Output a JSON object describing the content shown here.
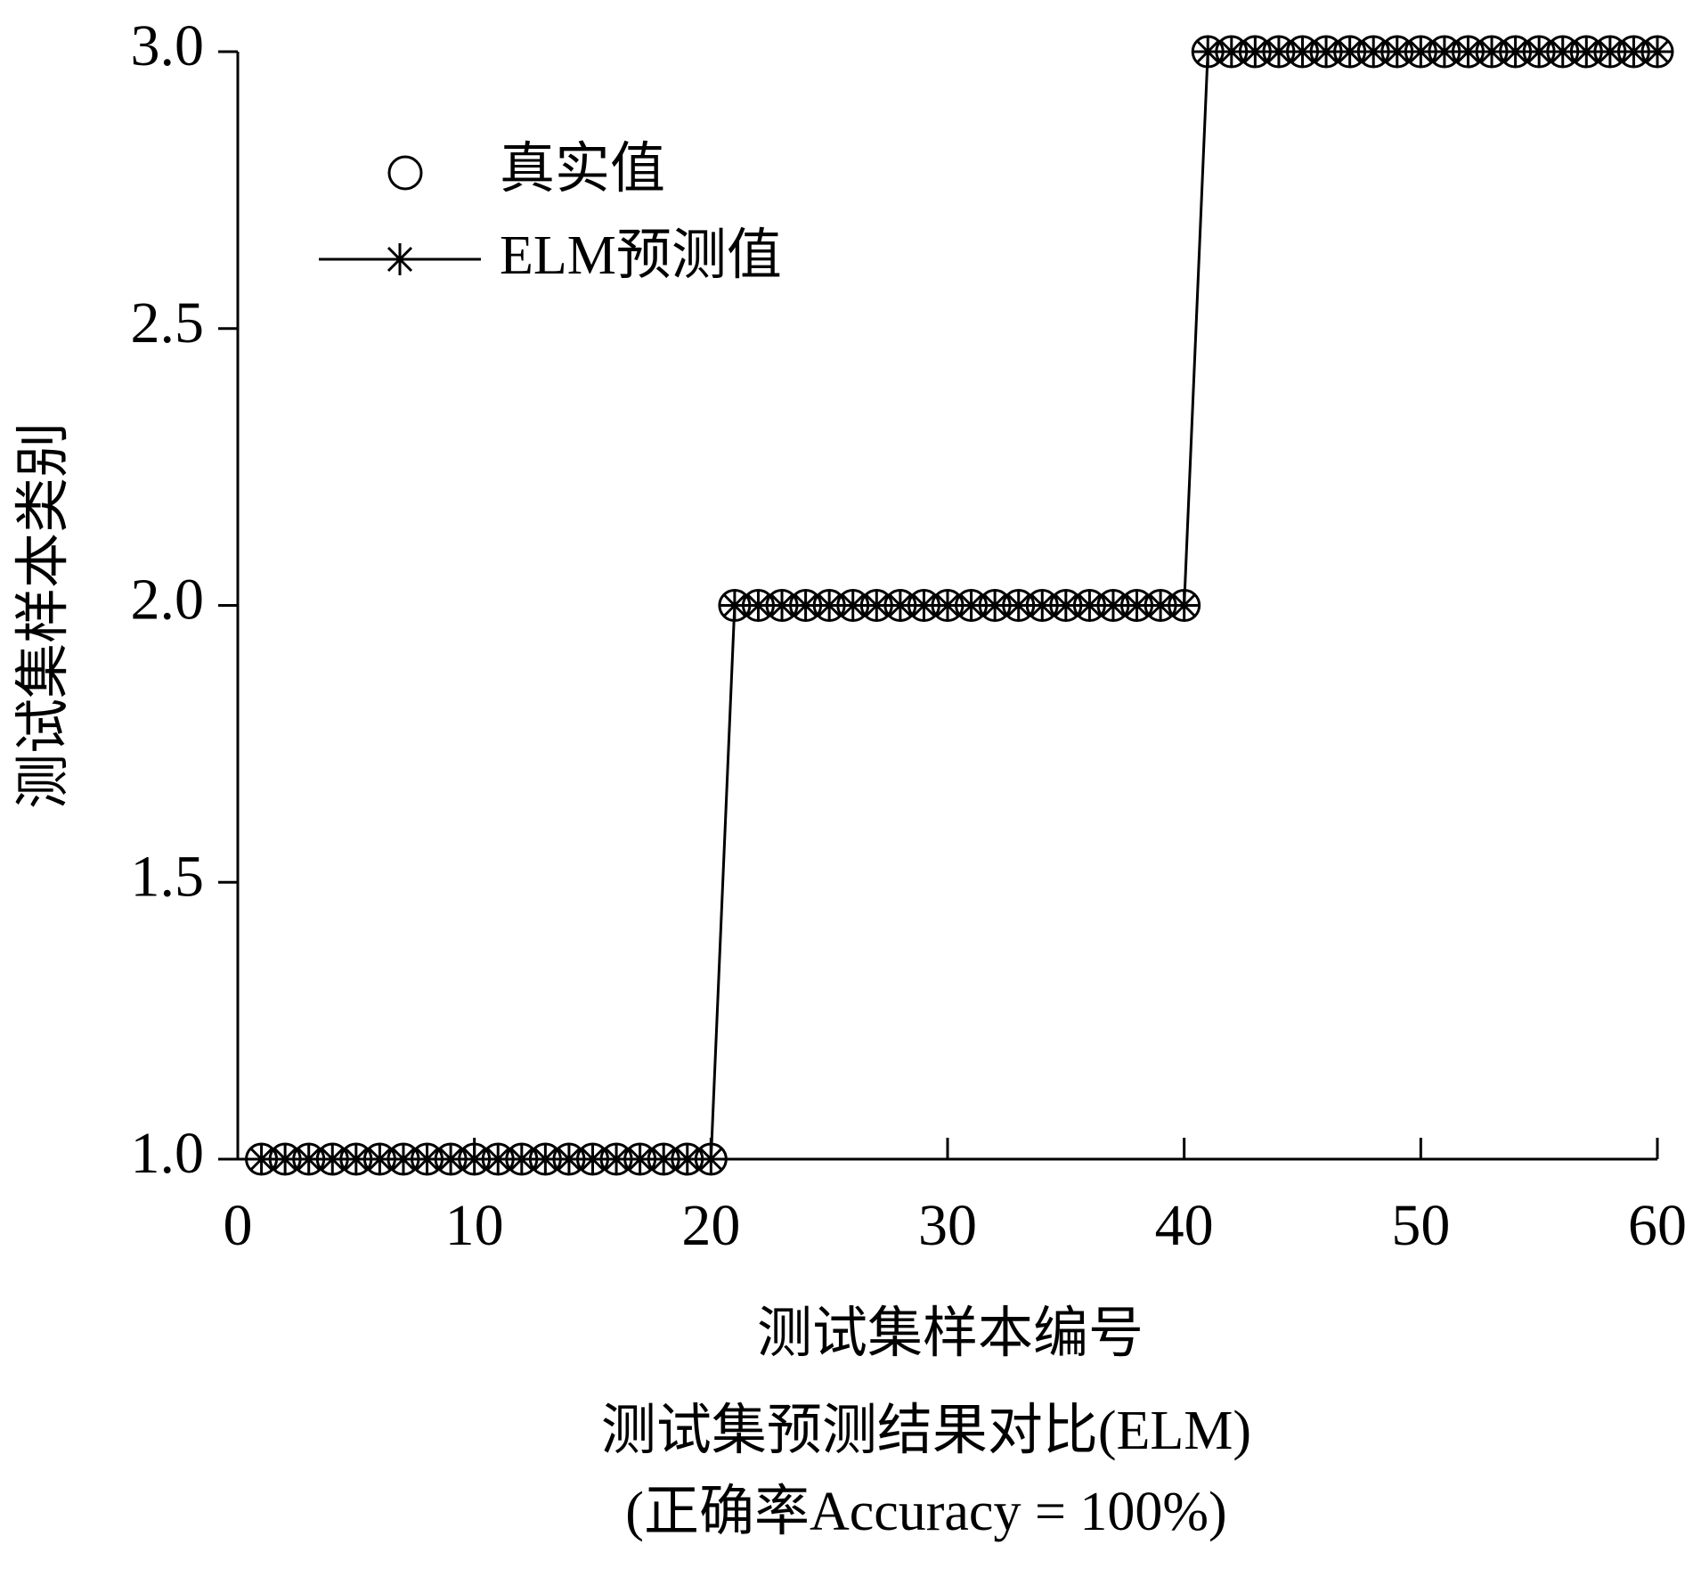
{
  "chart_data": {
    "type": "line",
    "title": "测试集预测结果对比(ELM)",
    "subtitle": "(正确率Accuracy = 100%)",
    "xlabel": "测试集样本编号",
    "ylabel": "测试集样本类别",
    "x": [
      1,
      2,
      3,
      4,
      5,
      6,
      7,
      8,
      9,
      10,
      11,
      12,
      13,
      14,
      15,
      16,
      17,
      18,
      19,
      20,
      21,
      22,
      23,
      24,
      25,
      26,
      27,
      28,
      29,
      30,
      31,
      32,
      33,
      34,
      35,
      36,
      37,
      38,
      39,
      40,
      41,
      42,
      43,
      44,
      45,
      46,
      47,
      48,
      49,
      50,
      51,
      52,
      53,
      54,
      55,
      56,
      57,
      58,
      59,
      60
    ],
    "series": [
      {
        "name": "真实值",
        "color": "#000000",
        "marker": "circle",
        "line": false,
        "values": [
          1,
          1,
          1,
          1,
          1,
          1,
          1,
          1,
          1,
          1,
          1,
          1,
          1,
          1,
          1,
          1,
          1,
          1,
          1,
          1,
          2,
          2,
          2,
          2,
          2,
          2,
          2,
          2,
          2,
          2,
          2,
          2,
          2,
          2,
          2,
          2,
          2,
          2,
          2,
          2,
          3,
          3,
          3,
          3,
          3,
          3,
          3,
          3,
          3,
          3,
          3,
          3,
          3,
          3,
          3,
          3,
          3,
          3,
          3,
          3
        ]
      },
      {
        "name": "ELM预测值",
        "color": "#000000",
        "marker": "asterisk",
        "line": true,
        "values": [
          1,
          1,
          1,
          1,
          1,
          1,
          1,
          1,
          1,
          1,
          1,
          1,
          1,
          1,
          1,
          1,
          1,
          1,
          1,
          1,
          2,
          2,
          2,
          2,
          2,
          2,
          2,
          2,
          2,
          2,
          2,
          2,
          2,
          2,
          2,
          2,
          2,
          2,
          2,
          2,
          3,
          3,
          3,
          3,
          3,
          3,
          3,
          3,
          3,
          3,
          3,
          3,
          3,
          3,
          3,
          3,
          3,
          3,
          3,
          3
        ]
      }
    ],
    "xlim": [
      0,
      60
    ],
    "xticks": [
      0,
      10,
      20,
      30,
      40,
      50,
      60
    ],
    "ylim": [
      1,
      3
    ],
    "yticks": [
      {
        "value": 1,
        "label": "1.0"
      },
      {
        "value": 1.5,
        "label": "1.5"
      },
      {
        "value": 2,
        "label": "2.0"
      },
      {
        "value": 2.5,
        "label": "2.5"
      },
      {
        "value": 3,
        "label": "3.0"
      }
    ],
    "grid": false
  }
}
